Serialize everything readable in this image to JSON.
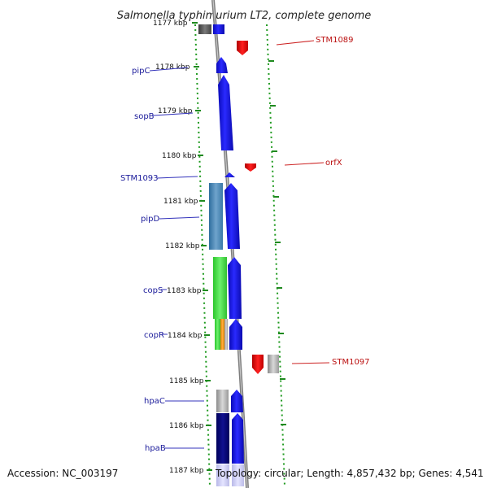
{
  "title": "Salmonella typhimurium LT2, complete genome",
  "footer": {
    "accession": "Accession: NC_003197",
    "topology": "Topology: circular; Length: 4,857,432 bp; Genes: 4,541"
  },
  "colors": {
    "forward_gene": "#1a1aee",
    "reverse_gene": "#ee1111",
    "backbone": "#888888",
    "tick": "#2a8a2a",
    "left_label": "#1a1a9a",
    "right_label": "#bb1111"
  },
  "ticks": [
    "1177 kbp",
    "1178 kbp",
    "1179 kbp",
    "1180 kbp",
    "1181 kbp",
    "1182 kbp",
    "1183 kbp",
    "1184 kbp",
    "1185 kbp",
    "1186 kbp",
    "1187 kbp"
  ],
  "labels_left": [
    "pipC",
    "sopB",
    "STM1093",
    "pipD",
    "copS",
    "copR",
    "hpaC",
    "hpaB"
  ],
  "labels_right": [
    "STM1089",
    "orfX",
    "STM1097"
  ]
}
